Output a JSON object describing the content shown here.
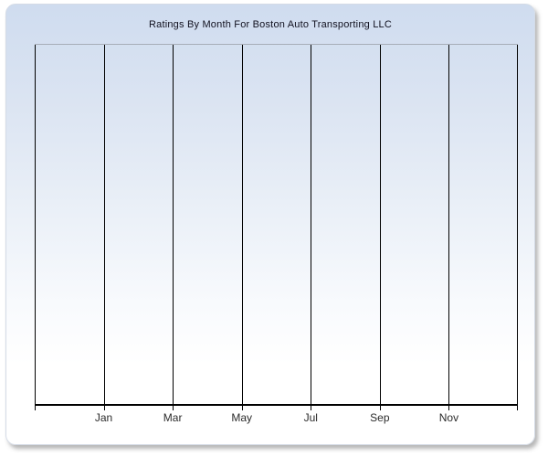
{
  "chart": {
    "title": "Ratings By Month For Boston Auto Transporting LLC"
  },
  "chart_data": {
    "type": "line",
    "title": "Ratings By Month For Boston Auto Transporting LLC",
    "x_ticks": [
      "Jan",
      "Mar",
      "May",
      "Jul",
      "Sep",
      "Nov"
    ],
    "x_gridline_count": 8,
    "x_tick_interval_months": 2,
    "series": [],
    "y_axis_labels": [],
    "xlabel": "",
    "ylabel": "",
    "grid": "vertical-only",
    "legend": "none"
  },
  "colors": {
    "panel_gradient_top": "#cfdcef",
    "panel_gradient_bottom": "#ffffff",
    "panel_border": "#d4dbe6",
    "plot_top_border": "#a7adb8",
    "gridline": "#000000",
    "axis": "#000000",
    "title_text": "#11111f",
    "tick_label_text": "#2b2b2b"
  }
}
